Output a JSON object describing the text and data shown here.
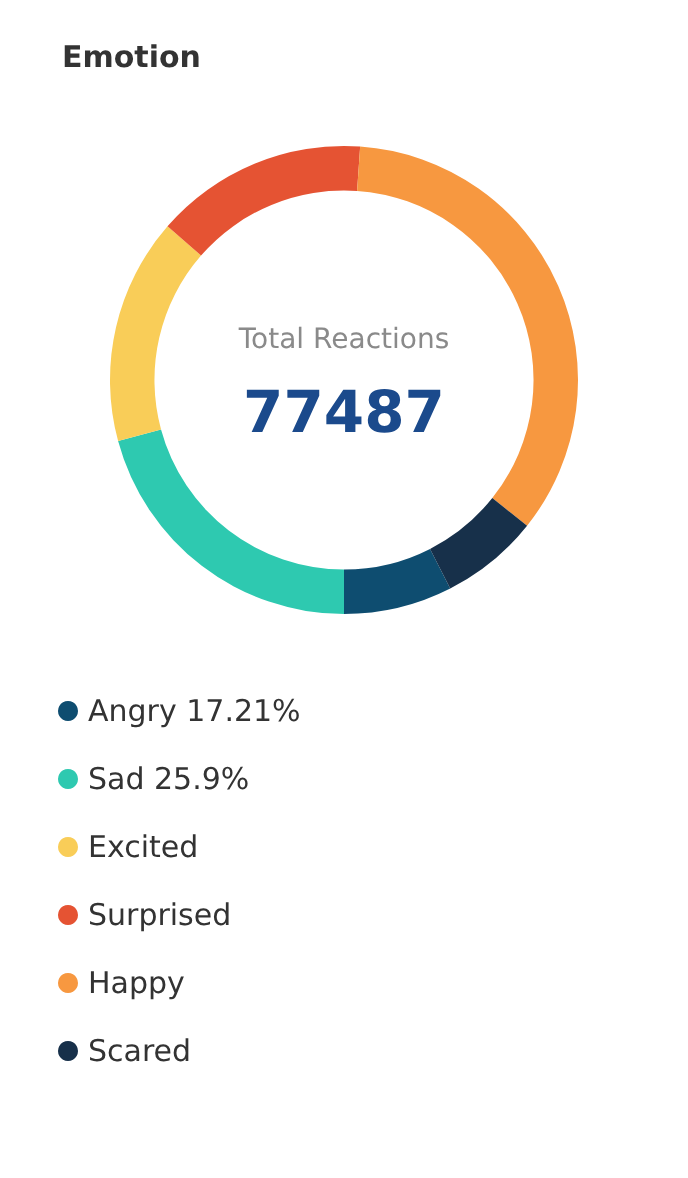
{
  "chart_data": {
    "type": "donut",
    "title": "Emotion",
    "categories": [
      "Angry 17.21%",
      "Sad 25.9%",
      "Excited",
      "Surprised",
      "Happy",
      "Scared"
    ],
    "values": [
      7.5,
      20.8,
      15.6,
      14.7,
      34.6,
      6.8
    ],
    "colors": [
      "#0e4d70",
      "#2ec9b0",
      "#f9cd58",
      "#e55333",
      "#f79840",
      "#17304a"
    ],
    "annotations": [
      "Total Reactions",
      "77487"
    ],
    "legend": "bottom"
  }
}
